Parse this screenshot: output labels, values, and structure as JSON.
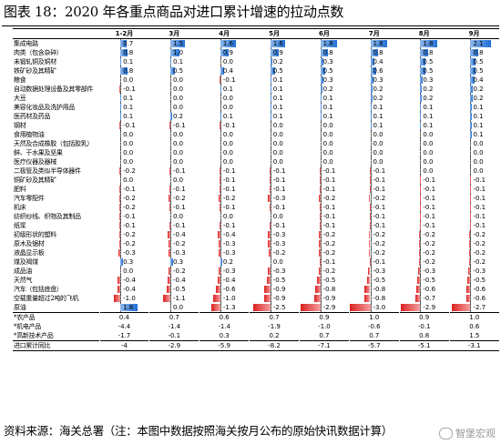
{
  "title": "图表 18：2020 年各重点商品对进口累计增速的拉动点数",
  "source": "资料来源：海关总署（注：本图中数据按照海关按月公布的原始快讯数据计算）",
  "watermark": "智堡宏观",
  "chart_data": {
    "type": "table",
    "columns": [
      "1-2月",
      "3月",
      "4月",
      "5月",
      "6月",
      "7月",
      "8月",
      "9月"
    ],
    "rows": [
      {
        "name": "集成电路",
        "values": [
          "0.7",
          "1.5",
          "1.6",
          "1.6",
          "1.8",
          "1.8",
          "1.8",
          "2.1"
        ]
      },
      {
        "name": "肉类（包含杂碎）",
        "values": [
          "0.8",
          "1.0",
          "0.9",
          "0.9",
          "0.8",
          "0.8",
          "0.8",
          "0.8"
        ]
      },
      {
        "name": "未锻轧铜及铜材",
        "values": [
          "0.1",
          "0.1",
          "0.0",
          "0.2",
          "0.3",
          "0.4",
          "0.5",
          "0.5"
        ]
      },
      {
        "name": "铁矿砂及其精矿",
        "values": [
          "0.8",
          "0.5",
          "0.4",
          "0.5",
          "0.5",
          "0.6",
          "0.5",
          "0.5"
        ]
      },
      {
        "name": "粮食",
        "values": [
          "0.0",
          "0.0",
          "-0.1",
          "0.1",
          "0.3",
          "0.3",
          "0.3",
          "0.4"
        ]
      },
      {
        "name": "自动数据处理设备及其零部件",
        "values": [
          "-0.1",
          "0.0",
          "0.1",
          "0.1",
          "0.2",
          "0.2",
          "0.2",
          "0.2"
        ]
      },
      {
        "name": "大豆",
        "values": [
          "0.1",
          "0.0",
          "0.0",
          "0.1",
          "0.1",
          "0.2",
          "0.2",
          "0.2"
        ]
      },
      {
        "name": "美容化妆品及洗护用品",
        "values": [
          "0.1",
          "0.0",
          "0.0",
          "0.1",
          "0.1",
          "0.1",
          "0.1",
          "0.1"
        ]
      },
      {
        "name": "医药材及药品",
        "values": [
          "0.1",
          "0.2",
          "0.1",
          "0.1",
          "0.1",
          "0.1",
          "0.1",
          "0.1"
        ]
      },
      {
        "name": "钢材",
        "values": [
          "-0.1",
          "-0.1",
          "-0.1",
          "0.0",
          "0.0",
          "0.1",
          "0.1",
          "0.1"
        ]
      },
      {
        "name": "食用植物油",
        "values": [
          "0.0",
          "0.0",
          "0.0",
          "0.0",
          "0.0",
          "0.0",
          "0.0",
          "0.1"
        ]
      },
      {
        "name": "天然及合成橡胶（包括胶乳）",
        "values": [
          "0.0",
          "0.0",
          "0.0",
          "0.0",
          "0.0",
          "0.0",
          "0.0",
          "0.0"
        ]
      },
      {
        "name": "鲜、干水果及坚果",
        "values": [
          "0.0",
          "0.0",
          "0.0",
          "0.0",
          "0.0",
          "0.0",
          "0.0",
          "0.0"
        ]
      },
      {
        "name": "医疗仪器及器械",
        "values": [
          "0.0",
          "0.0",
          "0.0",
          "0.0",
          "0.0",
          "0.0",
          "0.0",
          "0.0"
        ]
      },
      {
        "name": "二极管及类似半导体器件",
        "values": [
          "-0.2",
          "-0.1",
          "-0.1",
          "-0.1",
          "-0.1",
          "-0.1",
          "0.0",
          "0.0"
        ]
      },
      {
        "name": "铜矿砂及其精矿",
        "values": [
          "0.0",
          "0.0",
          "-0.1",
          "-0.1",
          "-0.1",
          "-0.1",
          "-0.1",
          "-0.1"
        ]
      },
      {
        "name": "肥料",
        "values": [
          "-0.1",
          "-0.1",
          "-0.1",
          "-0.1",
          "-0.1",
          "-0.1",
          "-0.1",
          "-0.1"
        ]
      },
      {
        "name": "汽车零配件",
        "values": [
          "-0.2",
          "-0.2",
          "-0.2",
          "-0.3",
          "-0.2",
          "-0.2",
          "-0.1",
          "-0.1"
        ]
      },
      {
        "name": "机床",
        "values": [
          "-0.2",
          "-0.1",
          "-0.1",
          "-0.1",
          "-0.1",
          "-0.1",
          "-0.1",
          "-0.1"
        ]
      },
      {
        "name": "纺织纱线、织物及其制品",
        "values": [
          "-0.1",
          "0.0",
          "0.0",
          "0.0",
          "-0.1",
          "-0.1",
          "-0.1",
          "-0.1"
        ]
      },
      {
        "name": "纸浆",
        "values": [
          "-0.1",
          "-0.1",
          "-0.1",
          "-0.1",
          "-0.1",
          "-0.1",
          "-0.1",
          "-0.1"
        ]
      },
      {
        "name": "初级形状的塑料",
        "values": [
          "-0.2",
          "-0.4",
          "-0.4",
          "-0.3",
          "-0.2",
          "-0.2",
          "-0.2",
          "-0.2"
        ]
      },
      {
        "name": "原木及锯材",
        "values": [
          "-0.2",
          "-0.2",
          "-0.3",
          "-0.3",
          "-0.2",
          "-0.2",
          "-0.2",
          "-0.2"
        ]
      },
      {
        "name": "液晶显示板",
        "values": [
          "-0.3",
          "-0.3",
          "-0.3",
          "-0.2",
          "-0.2",
          "-0.2",
          "-0.2",
          "-0.2"
        ]
      },
      {
        "name": "煤及褐煤",
        "values": [
          "0.3",
          "0.3",
          "0.2",
          "0.0",
          "-0.1",
          "-0.1",
          "-0.2",
          "-0.2"
        ]
      },
      {
        "name": "成品油",
        "values": [
          "0.0",
          "-0.2",
          "-0.3",
          "-0.3",
          "-0.2",
          "-0.3",
          "-0.3",
          "-0.3"
        ]
      },
      {
        "name": "天然气",
        "values": [
          "-0.4",
          "-0.4",
          "-0.4",
          "-0.5",
          "-0.5",
          "-0.5",
          "-0.5",
          "-0.5"
        ]
      },
      {
        "name": "汽车（包括底盘）",
        "values": [
          "-0.4",
          "-0.5",
          "-0.6",
          "-0.9",
          "-0.8",
          "-0.8",
          "-0.6",
          "-0.6"
        ]
      },
      {
        "name": "空载重量超过2吨的飞机",
        "values": [
          "-1.0",
          "-1.1",
          "-1.0",
          "-0.9",
          "-0.9",
          "-0.8",
          "-0.7",
          "-0.6"
        ]
      },
      {
        "name": "原油",
        "values": [
          "1.8",
          "0.0",
          "-1.3",
          "-2.5",
          "-2.9",
          "-3.0",
          "-2.9",
          "-2.7"
        ]
      }
    ],
    "summary_rows": [
      {
        "name": "*农产品",
        "values": [
          "0.4",
          "0.7",
          "0.6",
          "0.7",
          "0.9",
          "1.0",
          "0.9",
          "1.0"
        ]
      },
      {
        "name": "*机电产品",
        "values": [
          "-4.4",
          "-1.4",
          "-1.4",
          "-1.9",
          "-1.0",
          "-0.6",
          "-0.1",
          "0.6"
        ]
      },
      {
        "name": "*高新技术产品",
        "values": [
          "-1.7",
          "-0.1",
          "0.3",
          "0.2",
          "0.7",
          "0.7",
          "0.8",
          "1.5"
        ]
      },
      {
        "name": "进口累计同比",
        "values": [
          "-4",
          "-2.9",
          "-5.9",
          "-8.2",
          "-7.1",
          "-5.7",
          "-5.1",
          "-3.1"
        ]
      }
    ],
    "bar_scale_max": 3.0,
    "bar_colors": {
      "positive": "#1f6fd6",
      "negative": "#dc2020"
    }
  }
}
